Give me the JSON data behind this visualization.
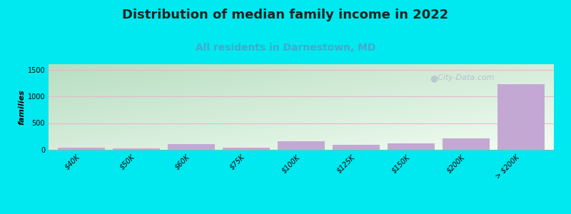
{
  "title": "Distribution of median family income in 2022",
  "subtitle": "All residents in Darnestown, MD",
  "ylabel": "families",
  "categories": [
    "$40K",
    "$50K",
    "$60K",
    "$75K",
    "$100K",
    "$125K",
    "$150K",
    "$200K",
    "> $200K"
  ],
  "values": [
    45,
    30,
    110,
    40,
    165,
    95,
    115,
    215,
    1230
  ],
  "bar_color": "#c4a8d4",
  "bg_outer": "#00e8f0",
  "bg_grad_topleft": "#b8d8c0",
  "bg_grad_bottomright": "#f0f8f0",
  "title_fontsize": 13,
  "subtitle_fontsize": 10,
  "subtitle_color": "#44aacc",
  "ylabel_fontsize": 8,
  "tick_fontsize": 7,
  "yticks": [
    0,
    500,
    1000,
    1500
  ],
  "ylim": [
    0,
    1600
  ],
  "watermark": "  City-Data.com",
  "watermark_color": "#aabbcc",
  "grid_color": "#e8b8c8"
}
